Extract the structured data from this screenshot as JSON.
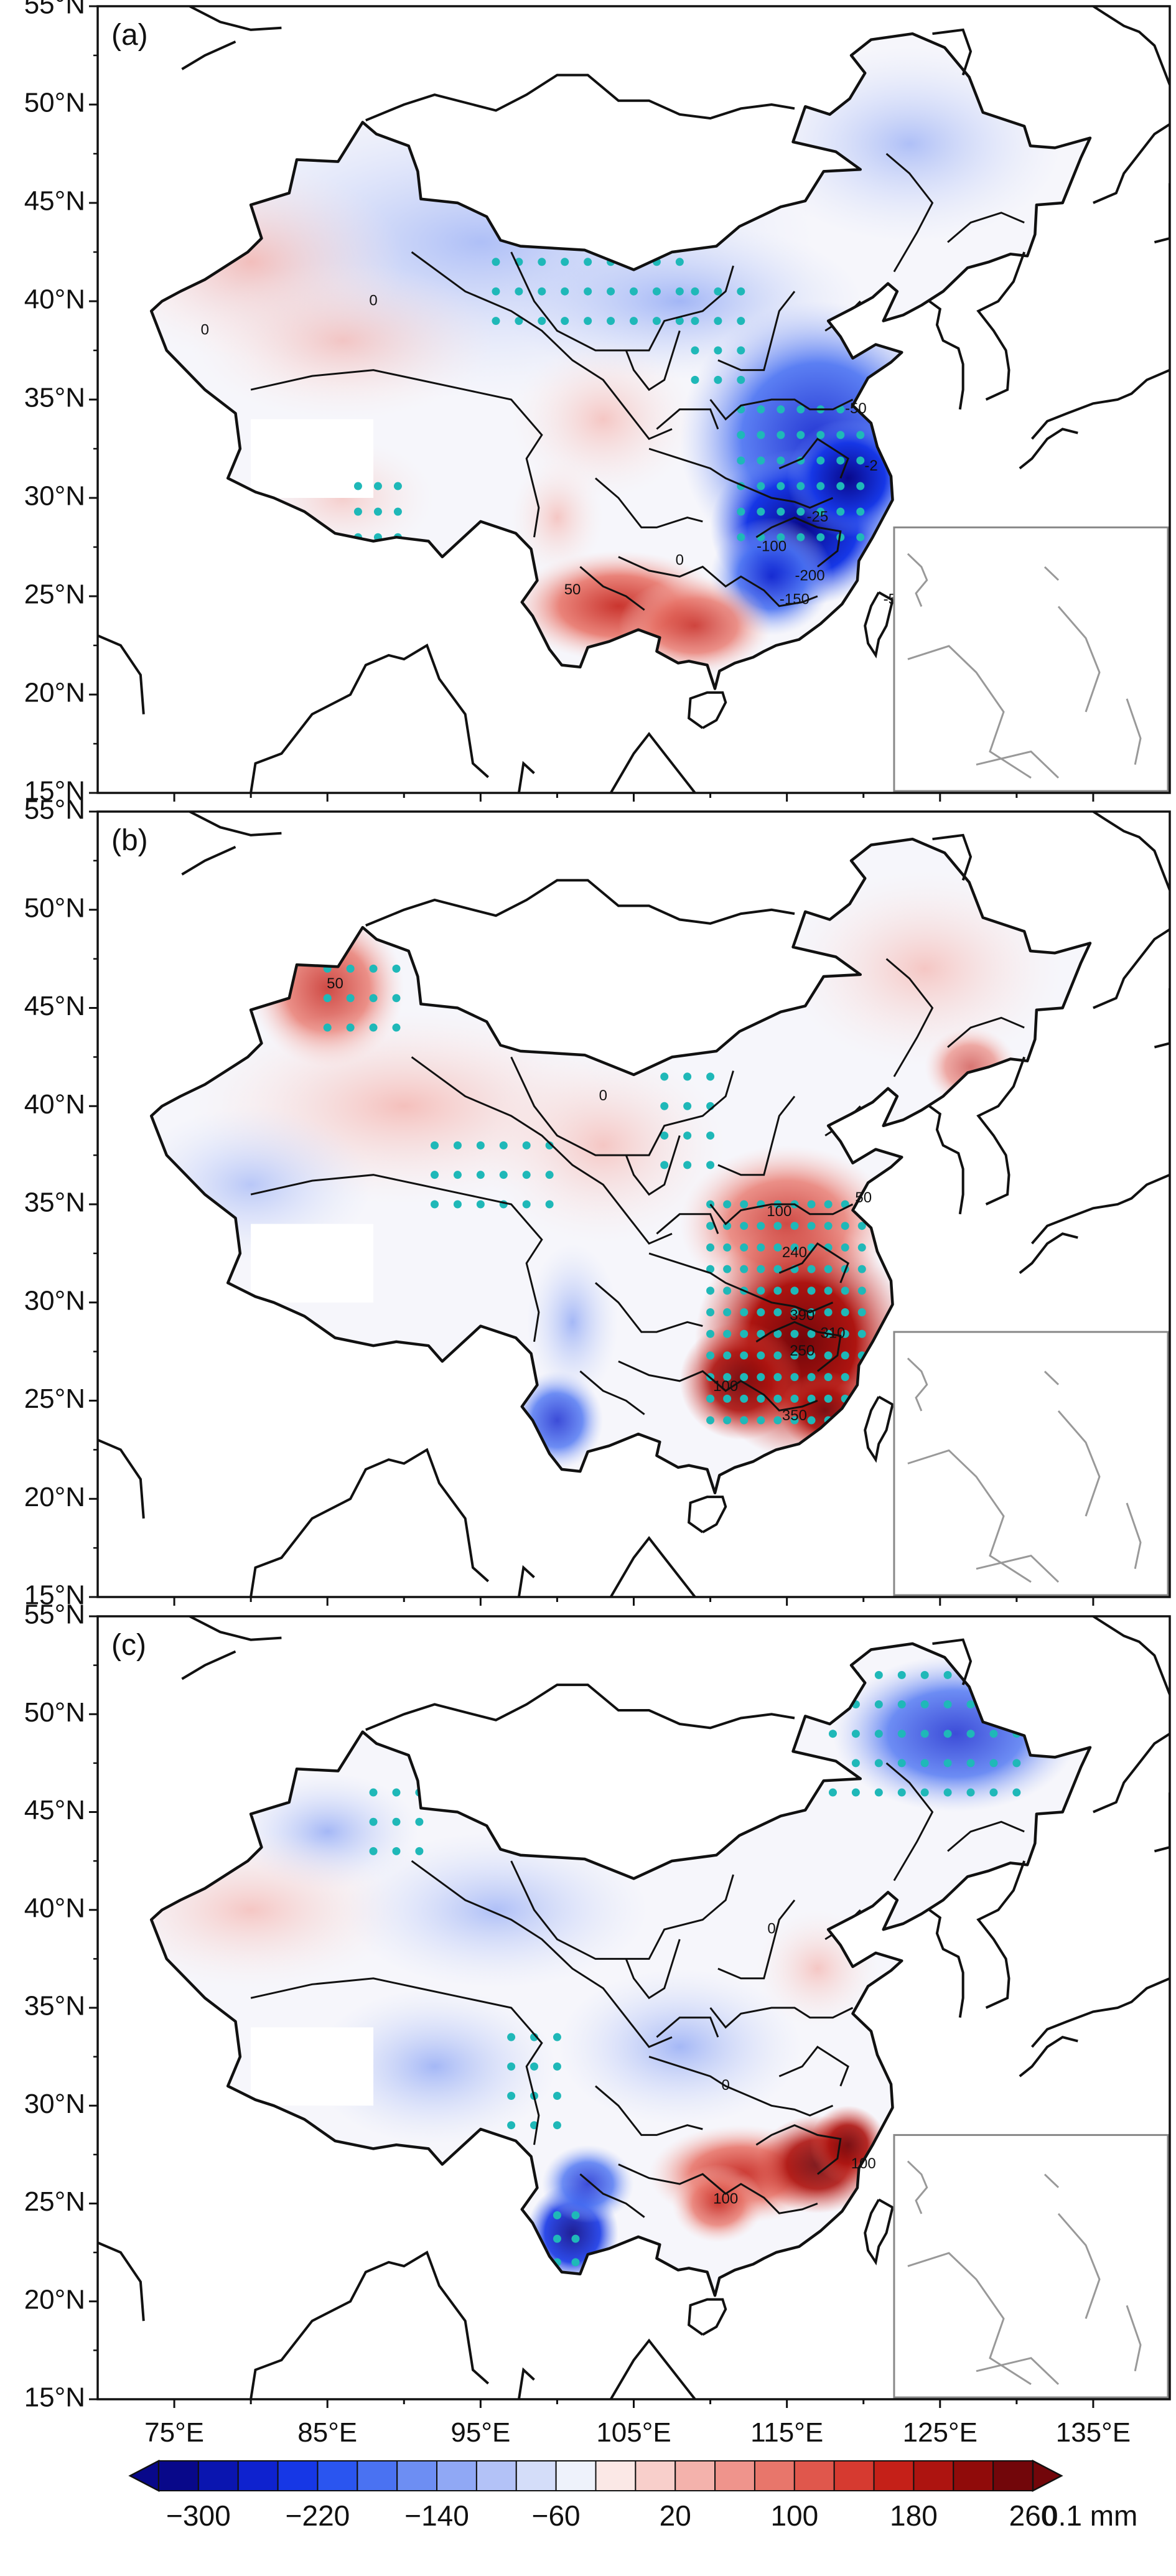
{
  "panels": [
    {
      "label": "(a)"
    },
    {
      "label": "(b)"
    },
    {
      "label": "(c)"
    }
  ],
  "axes": {
    "lat_ticks": [
      "15°N",
      "20°N",
      "25°N",
      "30°N",
      "35°N",
      "40°N",
      "45°N",
      "50°N",
      "55°N"
    ],
    "lon_ticks": [
      "75°E",
      "85°E",
      "95°E",
      "105°E",
      "115°E",
      "125°E",
      "135°E"
    ],
    "lon_range": [
      70,
      140
    ],
    "lat_range": [
      15,
      55
    ]
  },
  "contour_labels": {
    "a": [
      "-50",
      "-2",
      "-25",
      "-100",
      "-200",
      "-150",
      "-50",
      "50",
      "0",
      "0",
      "0"
    ],
    "b": [
      "50",
      "100",
      "240",
      "390",
      "310",
      "250",
      "100",
      "350",
      "50",
      "0"
    ],
    "c": [
      "0",
      "100",
      "100",
      "0"
    ]
  },
  "colorbar": {
    "tick_labels": [
      "−300",
      "−220",
      "−140",
      "−60",
      "20",
      "100",
      "180",
      "260"
    ],
    "unit": "0.1 mm",
    "colors": [
      "#08088a",
      "#0a15b0",
      "#0e22cf",
      "#1637e6",
      "#2a55f0",
      "#4a72f2",
      "#6d8ef3",
      "#90a8f5",
      "#b3c2f7",
      "#d4ddf9",
      "#eef2fb",
      "#fbe8e6",
      "#f8cfcb",
      "#f4b2ac",
      "#ef948c",
      "#e8766b",
      "#e0574c",
      "#d63a30",
      "#c52018",
      "#ad1410",
      "#900b0a",
      "#72060a"
    ]
  }
}
